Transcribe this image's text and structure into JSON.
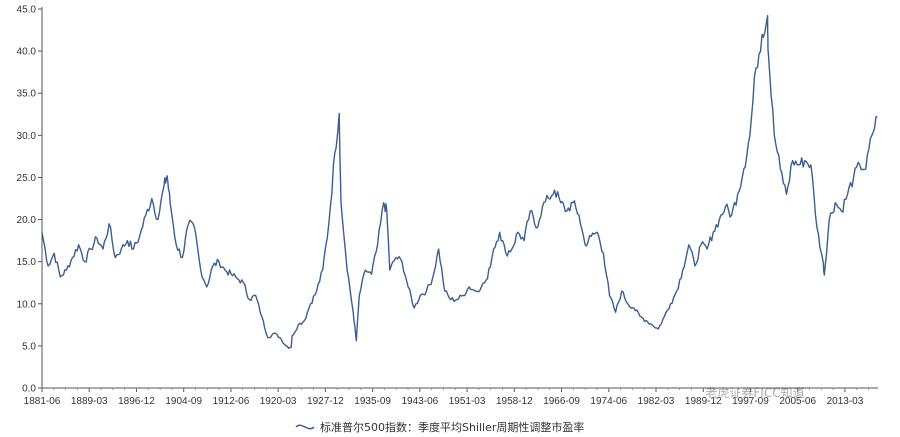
{
  "chart_data": {
    "type": "line",
    "title": "",
    "xlabel": "",
    "ylabel": "",
    "ylim": [
      0,
      45
    ],
    "y_ticks": [
      "0.0",
      "5.0",
      "10.0",
      "15.0",
      "20.0",
      "25.0",
      "30.0",
      "35.0",
      "40.0",
      "45.0"
    ],
    "x_tick_labels": [
      "1881-06",
      "1889-03",
      "1896-12",
      "1904-09",
      "1912-06",
      "1920-03",
      "1927-12",
      "1935-09",
      "1943-06",
      "1951-03",
      "1958-12",
      "1966-09",
      "1974-06",
      "1982-03",
      "1989-12",
      "1997-09",
      "2005-06",
      "2013-03"
    ],
    "legend_placement": "bottom-center",
    "grid": false,
    "series": [
      {
        "name": "标准普尔500指数：季度平均Shiller周期性调整市盈率",
        "color": "#3b5f8e",
        "x": [
          1881.0,
          1882.0,
          1883.0,
          1884.0,
          1885.0,
          1886.0,
          1887.0,
          1888.0,
          1889.0,
          1890.0,
          1891.0,
          1892.0,
          1893.0,
          1894.0,
          1895.0,
          1896.0,
          1897.0,
          1898.0,
          1899.0,
          1900.0,
          1901.0,
          1901.5,
          1902.0,
          1903.0,
          1904.0,
          1905.0,
          1906.0,
          1907.0,
          1908.0,
          1909.0,
          1910.0,
          1911.0,
          1912.0,
          1913.0,
          1914.0,
          1915.0,
          1916.0,
          1917.0,
          1918.0,
          1919.0,
          1920.0,
          1921.0,
          1921.8,
          1922.0,
          1923.0,
          1924.0,
          1925.0,
          1926.0,
          1927.0,
          1928.0,
          1929.0,
          1929.7,
          1930.0,
          1931.0,
          1932.0,
          1932.5,
          1933.0,
          1934.0,
          1935.0,
          1936.0,
          1937.0,
          1937.5,
          1938.0,
          1939.0,
          1940.0,
          1941.0,
          1942.0,
          1943.0,
          1944.0,
          1945.0,
          1946.0,
          1947.0,
          1948.0,
          1949.0,
          1950.0,
          1951.0,
          1952.0,
          1953.0,
          1954.0,
          1955.0,
          1956.0,
          1957.0,
          1958.0,
          1959.0,
          1960.0,
          1961.0,
          1962.0,
          1963.0,
          1964.0,
          1965.0,
          1966.0,
          1967.0,
          1968.0,
          1969.0,
          1970.0,
          1971.0,
          1972.0,
          1973.0,
          1974.0,
          1975.0,
          1976.0,
          1977.0,
          1978.0,
          1979.0,
          1980.0,
          1981.0,
          1982.0,
          1983.0,
          1984.0,
          1985.0,
          1986.0,
          1987.0,
          1988.0,
          1989.0,
          1990.0,
          1991.0,
          1992.0,
          1993.0,
          1994.0,
          1995.0,
          1996.0,
          1997.0,
          1998.0,
          1999.0,
          1999.9,
          2000.0,
          2001.0,
          2002.0,
          2003.0,
          2004.0,
          2005.0,
          2006.0,
          2007.0,
          2008.0,
          2009.0,
          2009.2,
          2010.0,
          2011.0,
          2012.0,
          2013.0,
          2014.0,
          2015.0,
          2016.0,
          2017.0,
          2017.9
        ],
        "values": [
          18.5,
          14.5,
          16.0,
          13.2,
          14.0,
          15.5,
          17.0,
          15.0,
          16.5,
          17.8,
          16.5,
          19.5,
          15.5,
          16.5,
          17.5,
          16.5,
          18.0,
          20.5,
          22.5,
          20.0,
          24.0,
          25.2,
          22.0,
          17.0,
          15.5,
          19.5,
          19.0,
          14.0,
          12.0,
          14.5,
          15.0,
          14.0,
          13.5,
          13.0,
          12.5,
          10.5,
          11.0,
          8.5,
          6.0,
          6.5,
          6.0,
          5.0,
          4.8,
          6.2,
          7.5,
          8.0,
          10.0,
          11.5,
          14.0,
          19.5,
          28.0,
          32.6,
          22.0,
          14.0,
          9.0,
          5.6,
          11.0,
          14.0,
          13.5,
          17.0,
          22.0,
          21.0,
          14.0,
          15.5,
          15.0,
          12.0,
          9.5,
          11.0,
          11.5,
          13.0,
          16.5,
          11.5,
          10.5,
          10.5,
          11.0,
          12.0,
          11.5,
          12.0,
          13.0,
          16.5,
          18.5,
          16.0,
          16.5,
          18.5,
          17.5,
          21.0,
          19.0,
          21.5,
          22.5,
          23.5,
          22.0,
          21.0,
          22.0,
          20.5,
          17.0,
          18.0,
          18.5,
          16.0,
          11.0,
          9.0,
          11.5,
          10.0,
          9.5,
          8.5,
          8.0,
          7.5,
          7.0,
          8.5,
          10.0,
          11.5,
          14.0,
          17.0,
          14.5,
          17.0,
          16.5,
          18.5,
          20.0,
          21.5,
          20.5,
          23.0,
          26.0,
          30.0,
          38.0,
          42.0,
          44.2,
          40.0,
          30.0,
          26.0,
          23.0,
          27.0,
          26.5,
          27.0,
          26.5,
          19.0,
          15.0,
          13.4,
          20.0,
          22.0,
          21.0,
          23.0,
          25.0,
          26.5,
          26.0,
          30.0,
          32.2
        ]
      }
    ]
  },
  "legend": {
    "label": "标准普尔500指数：季度平均Shiller周期性调整市盈率"
  },
  "watermark": {
    "text": "老虎证券FICC知道"
  }
}
